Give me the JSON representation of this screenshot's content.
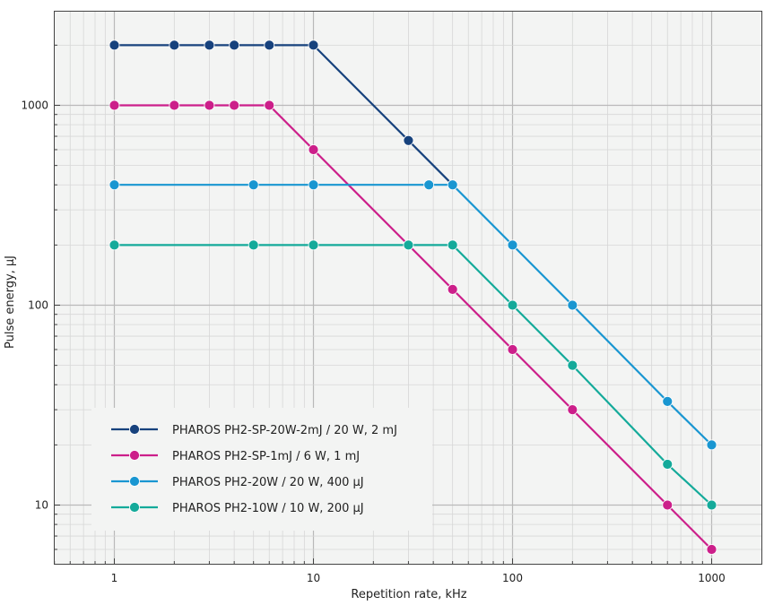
{
  "chart_data": {
    "type": "line",
    "title": "",
    "xlabel": "Repetition rate, kHz",
    "ylabel": "Pulse energy, µJ",
    "xscale": "log",
    "yscale": "log",
    "xlim": [
      0.5,
      1500
    ],
    "ylim": [
      5.5,
      2800
    ],
    "x_ticks": [
      1,
      10,
      100,
      1000
    ],
    "x_tick_labels": [
      "1",
      "10",
      "100",
      "1000"
    ],
    "y_ticks": [
      10,
      100,
      1000
    ],
    "y_tick_labels": [
      "10",
      "100",
      "1000"
    ],
    "grid": true,
    "legend_position": "bottom-left",
    "series": [
      {
        "name": "PHAROS PH2-SP-20W-2mJ / 20 W, 2 mJ",
        "color": "#17427d",
        "x": [
          1,
          2,
          3,
          4,
          6,
          10,
          30,
          50
        ],
        "y": [
          2000,
          2000,
          2000,
          2000,
          2000,
          2000,
          667,
          400
        ]
      },
      {
        "name": "PHAROS PH2-SP-1mJ / 6 W, 1 mJ",
        "color": "#cc1f8a",
        "x": [
          1,
          2,
          3,
          4,
          6,
          10,
          30,
          50,
          100,
          200,
          600,
          1000
        ],
        "y": [
          1000,
          1000,
          1000,
          1000,
          1000,
          600,
          200,
          120,
          60,
          30,
          10,
          6
        ]
      },
      {
        "name": "PHAROS PH2-20W / 20 W, 400 µJ",
        "color": "#1996d1",
        "x": [
          1,
          5,
          10,
          38,
          50,
          100,
          200,
          600,
          1000
        ],
        "y": [
          400,
          400,
          400,
          400,
          400,
          200,
          100,
          33,
          20
        ]
      },
      {
        "name": "PHAROS PH2-10W / 10 W, 200 µJ",
        "color": "#14aa9a",
        "x": [
          1,
          5,
          10,
          30,
          50,
          100,
          200,
          600,
          1000
        ],
        "y": [
          200,
          200,
          200,
          200,
          200,
          100,
          50,
          16,
          10
        ]
      }
    ]
  }
}
